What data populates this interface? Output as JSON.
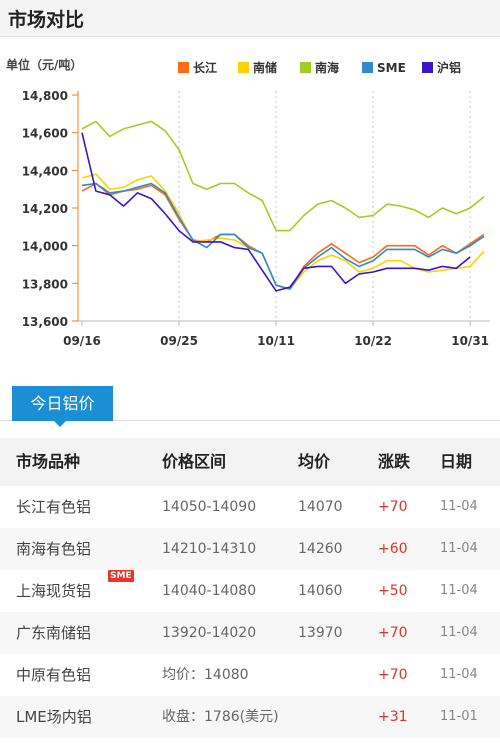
{
  "header": {
    "title": "市场对比"
  },
  "chart_data": {
    "type": "line",
    "ylabel": "单位（元/吨）",
    "ylim": [
      13600,
      14800
    ],
    "yticks": [
      13600,
      13800,
      14000,
      14200,
      14400,
      14600,
      14800
    ],
    "ytick_labels": [
      "13,600",
      "13,800",
      "14,000",
      "14,200",
      "14,400",
      "14,600",
      "14,800"
    ],
    "xtick_labels": [
      "09/16",
      "09/25",
      "10/11",
      "10/22",
      "10/31"
    ],
    "xtick_index": [
      0,
      7,
      14,
      21,
      28
    ],
    "legend_position": "top-right",
    "grid": "vertical dashed",
    "series": [
      {
        "name": "长江",
        "color": "#ff6a13",
        "values": [
          14290,
          14330,
          14270,
          14290,
          14300,
          14320,
          14270,
          14140,
          14030,
          14020,
          14060,
          14060,
          14000,
          13960,
          13790,
          13770,
          13890,
          13960,
          14010,
          13960,
          13910,
          13940,
          14000,
          14000,
          14000,
          13950,
          14000,
          13960,
          14010,
          14060
        ]
      },
      {
        "name": "南储",
        "color": "#ffd200",
        "values": [
          14360,
          14380,
          14300,
          14310,
          14350,
          14370,
          14290,
          14170,
          14020,
          14030,
          14040,
          14030,
          13990,
          13960,
          13790,
          13770,
          13860,
          13920,
          13950,
          13920,
          13860,
          13880,
          13920,
          13920,
          13880,
          13860,
          13870,
          13880,
          13890,
          13970
        ]
      },
      {
        "name": "南海",
        "color": "#a5cc22",
        "values": [
          14620,
          14660,
          14580,
          14620,
          14640,
          14660,
          14610,
          14510,
          14330,
          14300,
          14330,
          14330,
          14280,
          14240,
          14080,
          14080,
          14160,
          14220,
          14240,
          14200,
          14150,
          14160,
          14220,
          14210,
          14190,
          14150,
          14200,
          14170,
          14200,
          14260
        ]
      },
      {
        "name": "SME",
        "color": "#2d8bd1",
        "values": [
          14320,
          14330,
          14280,
          14290,
          14310,
          14330,
          14280,
          14150,
          14030,
          13990,
          14060,
          14060,
          13990,
          13960,
          13790,
          13770,
          13880,
          13940,
          13990,
          13930,
          13890,
          13920,
          13980,
          13980,
          13980,
          13940,
          13980,
          13960,
          14000,
          14050
        ]
      },
      {
        "name": "沪铝",
        "color": "#3a16c8",
        "values": [
          14600,
          14290,
          14270,
          14210,
          14280,
          14250,
          14170,
          14080,
          14020,
          14020,
          14020,
          13990,
          13980,
          13870,
          13760,
          13780,
          13880,
          13890,
          13890,
          13800,
          13850,
          13860,
          13880,
          13880,
          13880,
          13870,
          13890,
          13880,
          13940,
          null
        ]
      }
    ]
  },
  "section": {
    "tab_label": "今日铝价"
  },
  "table": {
    "headers": [
      "市场品种",
      "价格区间",
      "均价",
      "涨跌",
      "日期"
    ],
    "rows": [
      {
        "market": "长江有色铝",
        "range": "14050-14090",
        "avg": "14070",
        "change": "+70",
        "date": "11-04"
      },
      {
        "market": "南海有色铝",
        "range": "14210-14310",
        "avg": "14260",
        "change": "+60",
        "date": "11-04"
      },
      {
        "market": "上海现货铝",
        "range": "14040-14080",
        "avg": "14060",
        "change": "+50",
        "date": "11-04"
      },
      {
        "market": "广东南储铝",
        "range": "13920-14020",
        "avg": "13970",
        "change": "+70",
        "date": "11-04"
      },
      {
        "market": "中原有色铝",
        "range": "均价：14080",
        "avg": "",
        "change": "+70",
        "date": "11-04"
      },
      {
        "market": "LME场内铝",
        "range": "收盘：1786(美元)",
        "avg": "",
        "change": "+31",
        "date": "11-01"
      }
    ],
    "badge": "SME"
  }
}
